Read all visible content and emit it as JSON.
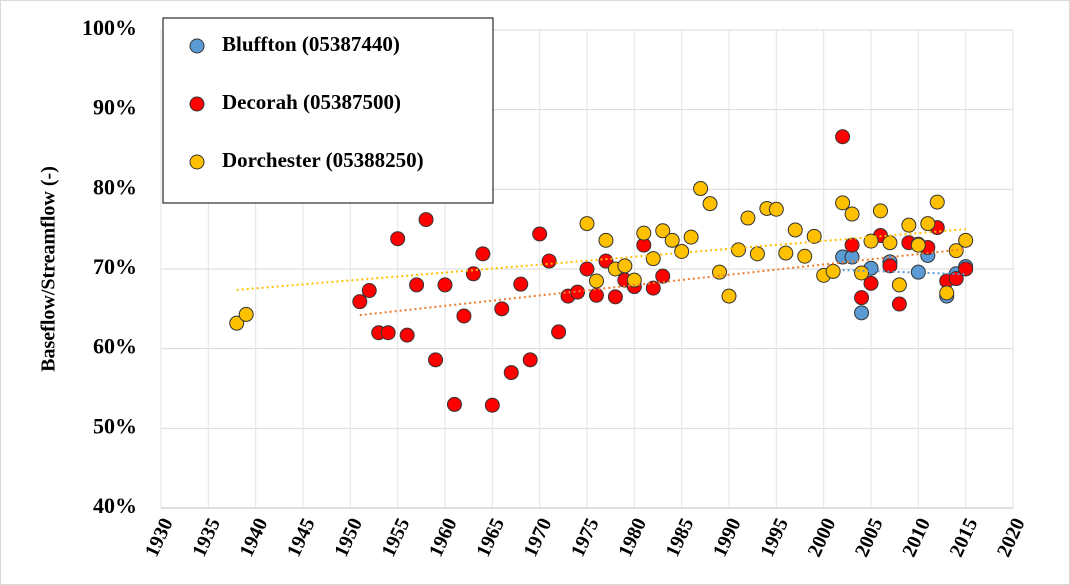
{
  "chart_data": {
    "type": "scatter",
    "ylabel": "Baseflow/Streamflow  (-)",
    "xlim": [
      1930,
      2020
    ],
    "xticks": [
      1930,
      1935,
      1940,
      1945,
      1950,
      1955,
      1960,
      1965,
      1970,
      1975,
      1980,
      1985,
      1990,
      1995,
      2000,
      2005,
      2010,
      2015,
      2020
    ],
    "ylim": [
      40,
      100
    ],
    "yticks": [
      {
        "value": 40,
        "label": "40%"
      },
      {
        "value": 50,
        "label": "50%"
      },
      {
        "value": 60,
        "label": "60%"
      },
      {
        "value": 70,
        "label": "70%"
      },
      {
        "value": 80,
        "label": "80%"
      },
      {
        "value": 90,
        "label": "90%"
      },
      {
        "value": 100,
        "label": "100%"
      }
    ],
    "grid": true,
    "legend": "top-left",
    "trendline": true,
    "series": [
      {
        "name": "Bluffton (05387440)",
        "color": "#5b9bd5",
        "trend_color": "#5b9bd5",
        "x": [
          2002,
          2003,
          2004,
          2005,
          2007,
          2010,
          2011,
          2013,
          2014,
          2015
        ],
        "values": [
          71.5,
          71.5,
          64.5,
          70.1,
          70.9,
          69.6,
          71.7,
          66.6,
          69.4,
          70.3
        ]
      },
      {
        "name": "Decorah (05387500)",
        "color": "#ff0000",
        "trend_color": "#ed7d31",
        "x": [
          1951,
          1952,
          1953,
          1954,
          1955,
          1956,
          1957,
          1958,
          1959,
          1960,
          1961,
          1962,
          1963,
          1964,
          1965,
          1966,
          1967,
          1968,
          1969,
          1970,
          1971,
          1972,
          1973,
          1974,
          1975,
          1976,
          1977,
          1978,
          1979,
          1980,
          1981,
          1982,
          1983,
          2002,
          2003,
          2004,
          2005,
          2006,
          2007,
          2008,
          2009,
          2010,
          2011,
          2012,
          2013,
          2014,
          2015
        ],
        "values": [
          65.9,
          67.3,
          62.0,
          62.0,
          73.8,
          61.7,
          68.0,
          76.2,
          58.6,
          68.0,
          53.0,
          64.1,
          69.4,
          71.9,
          52.9,
          65.0,
          57.0,
          68.1,
          58.6,
          74.4,
          71.0,
          62.1,
          66.6,
          67.1,
          70.0,
          66.7,
          71.0,
          66.5,
          68.6,
          67.8,
          73.0,
          67.6,
          69.1,
          86.6,
          73.0,
          66.4,
          68.2,
          74.2,
          70.4,
          65.6,
          73.3,
          73.1,
          72.7,
          75.2,
          68.5,
          68.8,
          70.0
        ]
      },
      {
        "name": "Dorchester (05388250)",
        "color": "#ffc000",
        "trend_color": "#ffc000",
        "x": [
          1938,
          1939,
          1975,
          1976,
          1977,
          1978,
          1979,
          1980,
          1981,
          1982,
          1983,
          1984,
          1985,
          1986,
          1987,
          1988,
          1989,
          1990,
          1991,
          1992,
          1993,
          1994,
          1995,
          1996,
          1997,
          1998,
          1999,
          2000,
          2001,
          2002,
          2003,
          2004,
          2005,
          2006,
          2007,
          2008,
          2009,
          2010,
          2011,
          2012,
          2013,
          2014,
          2015
        ],
        "values": [
          63.2,
          64.3,
          75.7,
          68.5,
          73.6,
          70.0,
          70.4,
          68.6,
          74.5,
          71.3,
          74.8,
          73.6,
          72.2,
          74.0,
          80.1,
          78.2,
          69.6,
          66.6,
          72.4,
          76.4,
          71.9,
          77.6,
          77.5,
          72.0,
          74.9,
          71.6,
          74.1,
          69.2,
          69.7,
          78.3,
          76.9,
          69.5,
          73.5,
          77.3,
          73.3,
          68.0,
          75.5,
          73.0,
          75.7,
          78.4,
          67.0,
          72.3,
          73.6
        ]
      }
    ]
  }
}
